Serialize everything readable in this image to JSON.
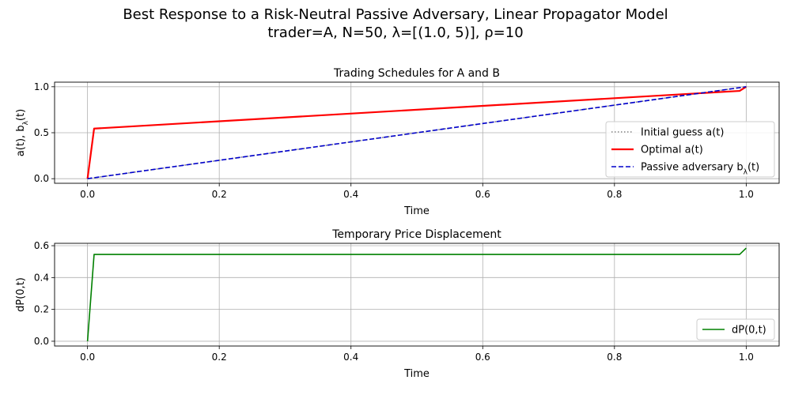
{
  "figure": {
    "title_line1": "Best Response to a Risk-Neutral Passive Adversary, Linear Propagator Model",
    "title_line2": "trader=A, N=50, λ=[(1.0, 5)], ρ=10"
  },
  "chart_data": [
    {
      "type": "line",
      "title": "Trading Schedules for A and B",
      "xlabel": "Time",
      "ylabel_main": "a(t), b",
      "ylabel_sub": "λ",
      "ylabel_tail": "(t)",
      "xlim": [
        -0.05,
        1.05
      ],
      "ylim": [
        -0.05,
        1.05
      ],
      "xticks": [
        0.0,
        0.2,
        0.4,
        0.6,
        0.8,
        1.0
      ],
      "xtick_labels": [
        "0.0",
        "0.2",
        "0.4",
        "0.6",
        "0.8",
        "1.0"
      ],
      "yticks": [
        0.0,
        0.5,
        1.0
      ],
      "ytick_labels": [
        "0.0",
        "0.5",
        "1.0"
      ],
      "grid": true,
      "legend_position": "center-right",
      "series": [
        {
          "name": "Initial guess a(t)",
          "style": "dotted",
          "color": "#808080",
          "x": [
            0.0,
            1.0
          ],
          "y": [
            0.0,
            1.0
          ]
        },
        {
          "name": "Optimal a(t)",
          "style": "solid",
          "color": "#ff0000",
          "x": [
            0.0,
            0.01,
            0.99,
            1.0
          ],
          "y": [
            0.0,
            0.545,
            0.955,
            1.0
          ]
        },
        {
          "name": "Passive adversary b",
          "name_sub": "λ",
          "name_tail": "(t)",
          "style": "dashed",
          "color": "#0000cc",
          "x": [
            0.0,
            1.0
          ],
          "y": [
            0.0,
            1.0
          ]
        }
      ]
    },
    {
      "type": "line",
      "title": "Temporary Price Displacement",
      "xlabel": "Time",
      "ylabel_main": "dP(0,t)",
      "xlim": [
        -0.05,
        1.05
      ],
      "ylim": [
        -0.03,
        0.615
      ],
      "xticks": [
        0.0,
        0.2,
        0.4,
        0.6,
        0.8,
        1.0
      ],
      "xtick_labels": [
        "0.0",
        "0.2",
        "0.4",
        "0.6",
        "0.8",
        "1.0"
      ],
      "yticks": [
        0.0,
        0.2,
        0.4,
        0.6
      ],
      "ytick_labels": [
        "0.0",
        "0.2",
        "0.4",
        "0.6"
      ],
      "grid": true,
      "legend_position": "lower-right",
      "series": [
        {
          "name": "dP(0,t)",
          "style": "solid",
          "color": "#008000",
          "x": [
            0.0,
            0.01,
            0.99,
            1.0
          ],
          "y": [
            0.0,
            0.545,
            0.545,
            0.585
          ]
        }
      ]
    }
  ]
}
